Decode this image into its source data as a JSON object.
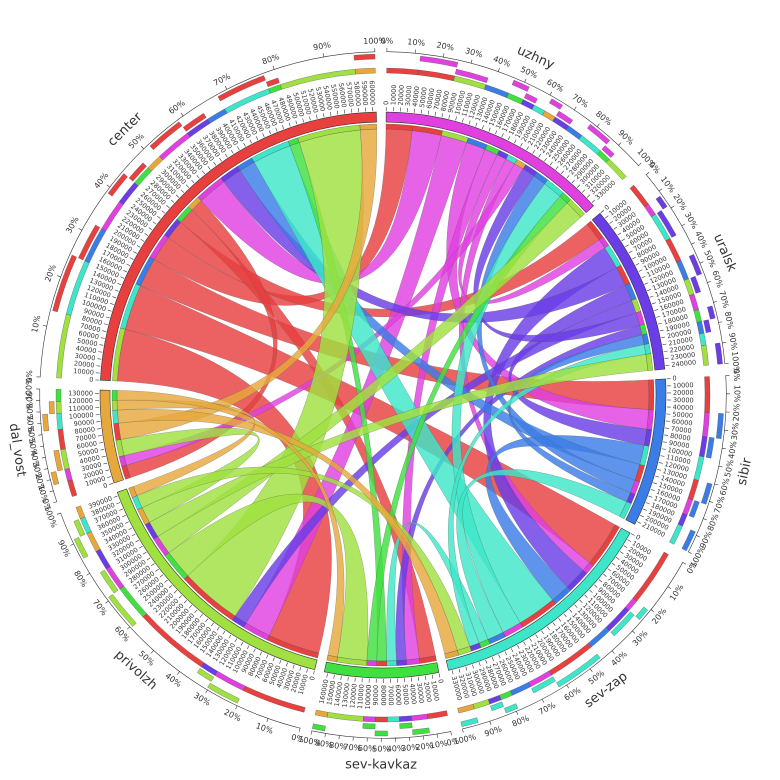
{
  "chart_data": {
    "type": "chord",
    "sectors": [
      {
        "name": "center",
        "color": "#e8403f",
        "ticks": [
          0,
          10000,
          20000,
          30000,
          40000,
          50000,
          60000,
          70000,
          80000,
          90000,
          100000,
          110000,
          120000,
          130000,
          140000,
          150000,
          160000,
          170000,
          180000,
          190000,
          200000,
          210000,
          220000,
          230000,
          240000,
          250000,
          260000,
          270000,
          280000,
          290000,
          300000,
          310000,
          320000,
          330000,
          340000,
          350000,
          360000,
          370000,
          380000,
          390000,
          400000,
          410000,
          420000,
          430000,
          440000,
          450000,
          460000,
          470000,
          480000,
          490000,
          500000,
          510000,
          520000,
          530000,
          540000,
          550000,
          560000,
          570000,
          580000,
          590000,
          600000
        ]
      },
      {
        "name": "uzhny",
        "color": "#e040e0",
        "ticks": [
          0,
          10000,
          20000,
          30000,
          40000,
          50000,
          60000,
          70000,
          80000,
          90000,
          100000,
          110000,
          120000,
          130000,
          140000,
          150000,
          160000,
          170000,
          180000,
          190000,
          200000,
          210000,
          220000,
          230000,
          240000,
          250000,
          260000,
          270000,
          280000,
          290000,
          300000,
          310000,
          320000,
          330000
        ]
      },
      {
        "name": "uralsk",
        "color": "#6a3de6",
        "ticks": [
          0,
          10000,
          20000,
          30000,
          40000,
          50000,
          60000,
          70000,
          80000,
          90000,
          100000,
          110000,
          120000,
          130000,
          140000,
          150000,
          160000,
          170000,
          180000,
          190000,
          200000,
          210000,
          220000,
          230000,
          240000
        ]
      },
      {
        "name": "sibir",
        "color": "#3b7de6",
        "ticks": [
          0,
          10000,
          20000,
          30000,
          40000,
          50000,
          60000,
          70000,
          80000,
          90000,
          100000,
          110000,
          120000,
          130000,
          140000,
          150000,
          160000,
          170000,
          180000,
          190000,
          200000,
          210000
        ]
      },
      {
        "name": "sev-zap",
        "color": "#3de6c8",
        "ticks": [
          0,
          10000,
          20000,
          30000,
          40000,
          50000,
          60000,
          70000,
          80000,
          90000,
          100000,
          110000,
          120000,
          130000,
          140000,
          150000,
          160000,
          170000,
          180000,
          190000,
          200000,
          210000,
          220000,
          230000,
          240000,
          250000,
          260000,
          270000,
          280000,
          290000,
          300000,
          310000,
          320000,
          330000
        ]
      },
      {
        "name": "sev-kavkaz",
        "color": "#40e040",
        "ticks": [
          0,
          10000,
          20000,
          30000,
          40000,
          50000,
          60000,
          70000,
          80000,
          90000,
          100000,
          110000,
          120000,
          130000,
          140000,
          150000,
          160000
        ]
      },
      {
        "name": "privolzh",
        "color": "#a0e040",
        "ticks": [
          0,
          10000,
          20000,
          30000,
          40000,
          50000,
          60000,
          70000,
          80000,
          90000,
          100000,
          110000,
          120000,
          130000,
          140000,
          150000,
          160000,
          170000,
          180000,
          190000,
          200000,
          210000,
          220000,
          230000,
          240000,
          250000,
          260000,
          270000,
          280000,
          290000,
          300000,
          310000,
          320000,
          330000,
          340000,
          350000,
          360000,
          370000,
          380000,
          390000
        ]
      },
      {
        "name": "dal_vost",
        "color": "#e6a83c",
        "ticks": [
          0,
          10000,
          20000,
          30000,
          40000,
          50000,
          60000,
          70000,
          80000,
          90000,
          100000,
          110000,
          120000,
          130000
        ]
      }
    ],
    "flows": [
      {
        "from": "center",
        "to": "privolzh",
        "value": 80000
      },
      {
        "from": "center",
        "to": "sev-zap",
        "value": 70000
      },
      {
        "from": "center",
        "to": "sibir",
        "value": 45000
      },
      {
        "from": "center",
        "to": "uzhny",
        "value": 40000
      },
      {
        "from": "center",
        "to": "uralsk",
        "value": 30000
      },
      {
        "from": "center",
        "to": "sev-kavkaz",
        "value": 25000
      },
      {
        "from": "center",
        "to": "dal_vost",
        "value": 20000
      },
      {
        "from": "uzhny",
        "to": "center",
        "value": 45000
      },
      {
        "from": "uzhny",
        "to": "privolzh",
        "value": 40000
      },
      {
        "from": "uzhny",
        "to": "sibir",
        "value": 30000
      },
      {
        "from": "uzhny",
        "to": "sev-kavkaz",
        "value": 20000
      },
      {
        "from": "uzhny",
        "to": "uralsk",
        "value": 15000
      },
      {
        "from": "uzhny",
        "to": "sev-zap",
        "value": 15000
      },
      {
        "from": "uzhny",
        "to": "dal_vost",
        "value": 15000
      },
      {
        "from": "uralsk",
        "to": "sev-zap",
        "value": 35000
      },
      {
        "from": "uralsk",
        "to": "center",
        "value": 30000
      },
      {
        "from": "uralsk",
        "to": "sibir",
        "value": 25000
      },
      {
        "from": "uralsk",
        "to": "privolzh",
        "value": 20000
      },
      {
        "from": "uralsk",
        "to": "uzhny",
        "value": 20000
      },
      {
        "from": "uralsk",
        "to": "sev-kavkaz",
        "value": 15000
      },
      {
        "from": "sibir",
        "to": "sev-zap",
        "value": 30000
      },
      {
        "from": "sibir",
        "to": "center",
        "value": 25000
      },
      {
        "from": "sibir",
        "to": "uzhny",
        "value": 20000
      },
      {
        "from": "sibir",
        "to": "uralsk",
        "value": 15000
      },
      {
        "from": "sev-zap",
        "to": "center",
        "value": 60000
      },
      {
        "from": "sev-zap",
        "to": "uzhny",
        "value": 30000
      },
      {
        "from": "sev-zap",
        "to": "sibir",
        "value": 25000
      },
      {
        "from": "sev-zap",
        "to": "sev-kavkaz",
        "value": 15000
      },
      {
        "from": "sev-zap",
        "to": "uralsk",
        "value": 15000
      },
      {
        "from": "sev-kavkaz",
        "to": "center",
        "value": 15000
      },
      {
        "from": "sev-kavkaz",
        "to": "uzhny",
        "value": 15000
      },
      {
        "from": "privolzh",
        "to": "center",
        "value": 95000
      },
      {
        "from": "privolzh",
        "to": "sev-kavkaz",
        "value": 45000
      },
      {
        "from": "privolzh",
        "to": "uzhny",
        "value": 30000
      },
      {
        "from": "privolzh",
        "to": "uralsk",
        "value": 25000
      },
      {
        "from": "privolzh",
        "to": "dal_vost",
        "value": 25000
      },
      {
        "from": "privolzh",
        "to": "sev-zap",
        "value": 20000
      },
      {
        "from": "dal_vost",
        "to": "center",
        "value": 25000
      },
      {
        "from": "dal_vost",
        "to": "sev-zap",
        "value": 20000
      },
      {
        "from": "dal_vost",
        "to": "privolzh",
        "value": 15000
      },
      {
        "from": "dal_vost",
        "to": "sev-kavkaz",
        "value": 15000
      }
    ],
    "percent_ticks": [
      {
        "value": 0,
        "label": "0%"
      },
      {
        "value": 10,
        "label": "10%"
      },
      {
        "value": 20,
        "label": "20%"
      },
      {
        "value": 30,
        "label": "30%"
      },
      {
        "value": 40,
        "label": "40%"
      },
      {
        "value": 50,
        "label": "50%"
      },
      {
        "value": 60,
        "label": "60%"
      },
      {
        "value": 70,
        "label": "70%"
      },
      {
        "value": 80,
        "label": "80%"
      },
      {
        "value": 90,
        "label": "90%"
      },
      {
        "value": 100,
        "label": "100%"
      }
    ]
  }
}
